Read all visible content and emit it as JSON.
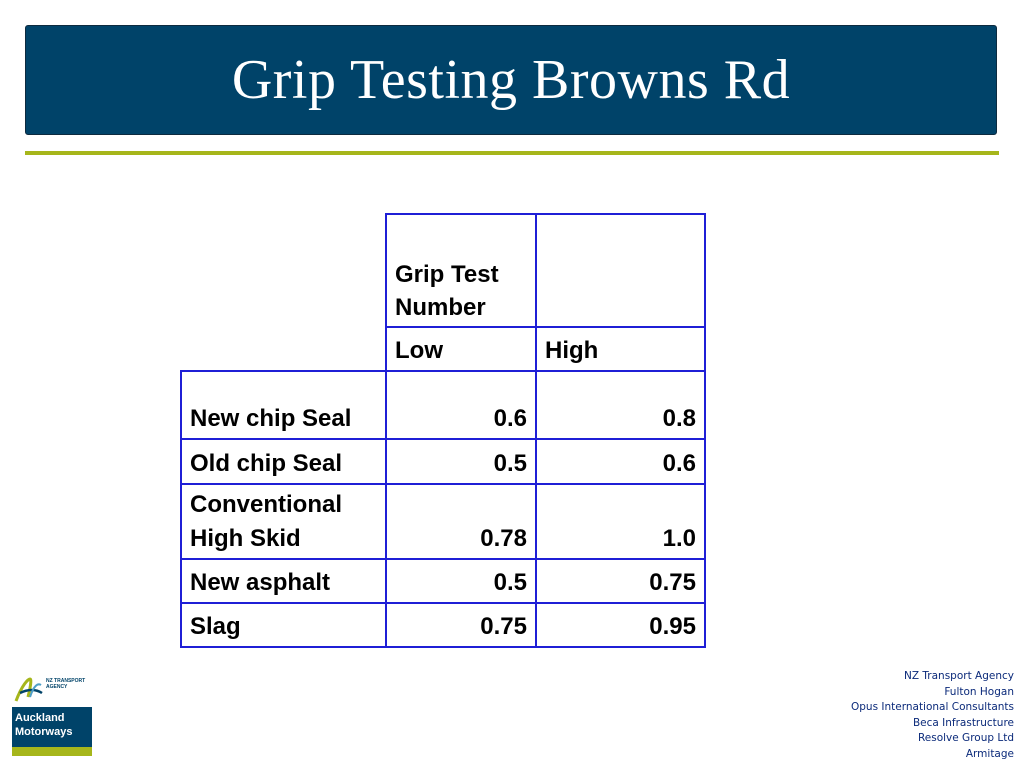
{
  "title": "Grip Testing Browns Rd",
  "table": {
    "header_top": "Grip Test Number",
    "header_low": "Low",
    "header_high": "High",
    "rows": [
      {
        "label": "New chip Seal",
        "low": "0.6",
        "high": "0.8"
      },
      {
        "label": "Old chip Seal",
        "low": "0.5",
        "high": "0.6"
      },
      {
        "label": "Conventional High Skid",
        "low": "0.78",
        "high": "1.0"
      },
      {
        "label": "New asphalt",
        "low": "0.5",
        "high": "0.75"
      },
      {
        "label": "Slag",
        "low": "0.75",
        "high": "0.95"
      }
    ]
  },
  "logo": {
    "agency_line1": "NZ TRANSPORT",
    "agency_line2": "AGENCY",
    "name_line1": "Auckland",
    "name_line2": "Motorways",
    "mark_icon": "nzta-swoosh-icon"
  },
  "partners": [
    "NZ Transport Agency",
    "Fulton Hogan",
    "Opus International Consultants",
    "Beca Infrastructure",
    "Resolve Group Ltd",
    "Armitage"
  ],
  "colors": {
    "title_bg": "#004369",
    "accent": "#a6b61b",
    "table_border": "#1f1fd6",
    "partner_text": "#0b2a7a"
  }
}
